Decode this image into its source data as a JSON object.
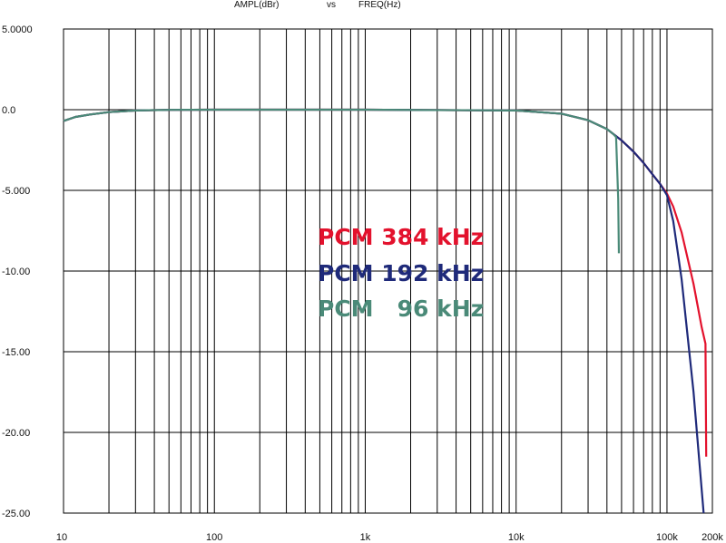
{
  "title": {
    "y_quantity": "AMPL(dBr)",
    "separator": "vs",
    "x_quantity": "FREQ(Hz)"
  },
  "chart_data": {
    "type": "line",
    "title": "AMPL(dBr)   vs   FREQ(Hz)",
    "xlabel": "FREQ(Hz)",
    "ylabel": "AMPL(dBr)",
    "x_scale": "log",
    "xlim": [
      10,
      200000
    ],
    "ylim": [
      -25,
      5
    ],
    "grid": true,
    "legend_placement": "center-right",
    "x_tick_labels": [
      "10",
      "100",
      "1k",
      "10k",
      "100k",
      "200k"
    ],
    "y_tick_labels": [
      "5.0000",
      "0.0",
      "-5.000",
      "-10.00",
      "-15.00",
      "-20.00",
      "-25.00"
    ],
    "y_tick_values": [
      5,
      0,
      -5,
      -10,
      -15,
      -20,
      -25
    ],
    "series": [
      {
        "name": "PCM 384 kHz",
        "color": "#e3122d",
        "x": [
          10,
          12,
          15,
          20,
          30,
          50,
          100,
          1000,
          10000,
          20000,
          30000,
          40000,
          50000,
          60000,
          70000,
          80000,
          90000,
          100000,
          110000,
          125000,
          150000,
          170000,
          180000,
          182000
        ],
        "y": [
          -0.7,
          -0.45,
          -0.3,
          -0.15,
          -0.05,
          -0.01,
          0,
          0,
          -0.05,
          -0.25,
          -0.65,
          -1.2,
          -1.9,
          -2.6,
          -3.3,
          -4.0,
          -4.6,
          -5.2,
          -6.0,
          -7.6,
          -10.8,
          -13.5,
          -14.5,
          -21.5
        ]
      },
      {
        "name": "PCM 192 kHz",
        "color": "#1f2a7a",
        "x": [
          10,
          12,
          15,
          20,
          30,
          50,
          100,
          1000,
          10000,
          20000,
          30000,
          40000,
          50000,
          60000,
          70000,
          80000,
          90000,
          100000,
          110000,
          125000,
          150000,
          175000
        ],
        "y": [
          -0.7,
          -0.45,
          -0.3,
          -0.15,
          -0.05,
          -0.01,
          0,
          0,
          -0.05,
          -0.25,
          -0.65,
          -1.2,
          -1.9,
          -2.6,
          -3.3,
          -4.0,
          -4.6,
          -5.3,
          -6.9,
          -10.5,
          -17.5,
          -25.0
        ]
      },
      {
        "name": "PCM   96 kHz",
        "color": "#4a8a78",
        "x": [
          10,
          12,
          15,
          20,
          30,
          50,
          100,
          1000,
          10000,
          20000,
          30000,
          40000,
          44000,
          46000,
          47500,
          48000
        ],
        "y": [
          -0.7,
          -0.45,
          -0.3,
          -0.15,
          -0.05,
          -0.01,
          0,
          0,
          -0.05,
          -0.25,
          -0.65,
          -1.2,
          -1.5,
          -1.7,
          -5.5,
          -8.9
        ]
      }
    ]
  }
}
